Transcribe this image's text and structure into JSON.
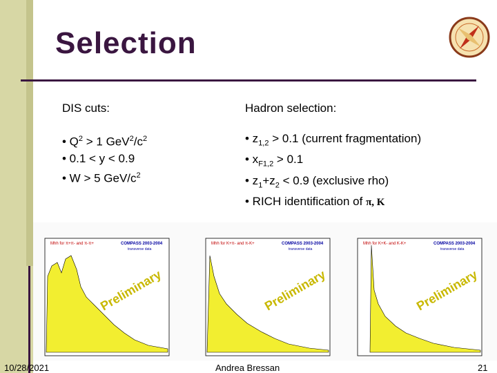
{
  "title": "Selection",
  "dis": {
    "heading": "DIS cuts:",
    "b1": "• Q",
    "b1sup": "2",
    "b1rest": " > 1 GeV",
    "b1sup2": "2",
    "b1rest2": "/c",
    "b1sup3": "2",
    "b2": "• 0.1 < y < 0.9",
    "b3": "• W > 5 GeV/c",
    "b3sup": "2"
  },
  "hadron": {
    "heading": "Hadron selection:",
    "h1": "• z",
    "h1sub": "1,2",
    "h1rest": " > 0.1 (current fragmentation)",
    "h2": "• x",
    "h2sub": "F1,2",
    "h2rest": " > 0.1",
    "h3a": "• z",
    "h3sub1": "1",
    "h3b": "+z",
    "h3sub2": "2",
    "h3rest": " < 0.9 (exclusive rho)",
    "h4": "• RICH identification of ",
    "h4sym": "π, K"
  },
  "plots": [
    {
      "legend": "Mhh for π+π- and π-π+",
      "tag": "COMPASS 2003-2004",
      "sub": "transverse data",
      "prelim": "Preliminary"
    },
    {
      "legend": "Mhh for K+π- and π-K+",
      "tag": "COMPASS 2003-2004",
      "sub": "transverse data",
      "prelim": "Preliminary"
    },
    {
      "legend": "Mhh for K+K- and K-K+",
      "tag": "COMPASS 2003-2004",
      "sub": "transverse data",
      "prelim": "Preliminary"
    }
  ],
  "footer": {
    "date": "10/28/2021",
    "author": "Andrea Bressan",
    "page": "21"
  }
}
